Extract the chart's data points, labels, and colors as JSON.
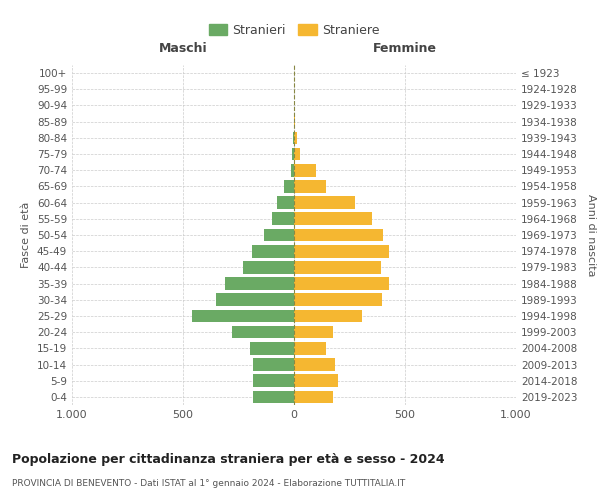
{
  "age_groups": [
    "0-4",
    "5-9",
    "10-14",
    "15-19",
    "20-24",
    "25-29",
    "30-34",
    "35-39",
    "40-44",
    "45-49",
    "50-54",
    "55-59",
    "60-64",
    "65-69",
    "70-74",
    "75-79",
    "80-84",
    "85-89",
    "90-94",
    "95-99",
    "100+"
  ],
  "birth_years": [
    "2019-2023",
    "2014-2018",
    "2009-2013",
    "2004-2008",
    "1999-2003",
    "1994-1998",
    "1989-1993",
    "1984-1988",
    "1979-1983",
    "1974-1978",
    "1969-1973",
    "1964-1968",
    "1959-1963",
    "1954-1958",
    "1949-1953",
    "1944-1948",
    "1939-1943",
    "1934-1938",
    "1929-1933",
    "1924-1928",
    "≤ 1923"
  ],
  "maschi": [
    185,
    185,
    185,
    200,
    280,
    460,
    350,
    310,
    230,
    190,
    135,
    100,
    75,
    45,
    15,
    10,
    5,
    2,
    1,
    1,
    2
  ],
  "femmine": [
    175,
    200,
    185,
    145,
    175,
    305,
    395,
    430,
    390,
    430,
    400,
    350,
    275,
    145,
    100,
    25,
    12,
    3,
    2,
    1,
    2
  ],
  "color_maschi": "#6aaa64",
  "color_femmine": "#f5b731",
  "background_color": "#ffffff",
  "grid_color": "#cccccc",
  "dashed_line_color": "#888844",
  "title": "Popolazione per cittadinanza straniera per età e sesso - 2024",
  "subtitle": "PROVINCIA DI BENEVENTO - Dati ISTAT al 1° gennaio 2024 - Elaborazione TUTTITALIA.IT",
  "ylabel_left": "Fasce di età",
  "ylabel_right": "Anni di nascita",
  "xlabel_left": "Maschi",
  "xlabel_top_right": "Femmine",
  "legend_stranieri": "Stranieri",
  "legend_straniere": "Straniere",
  "xlim": 1000,
  "xtick_labels": [
    "1.000",
    "500",
    "0",
    "500",
    "1.000"
  ]
}
